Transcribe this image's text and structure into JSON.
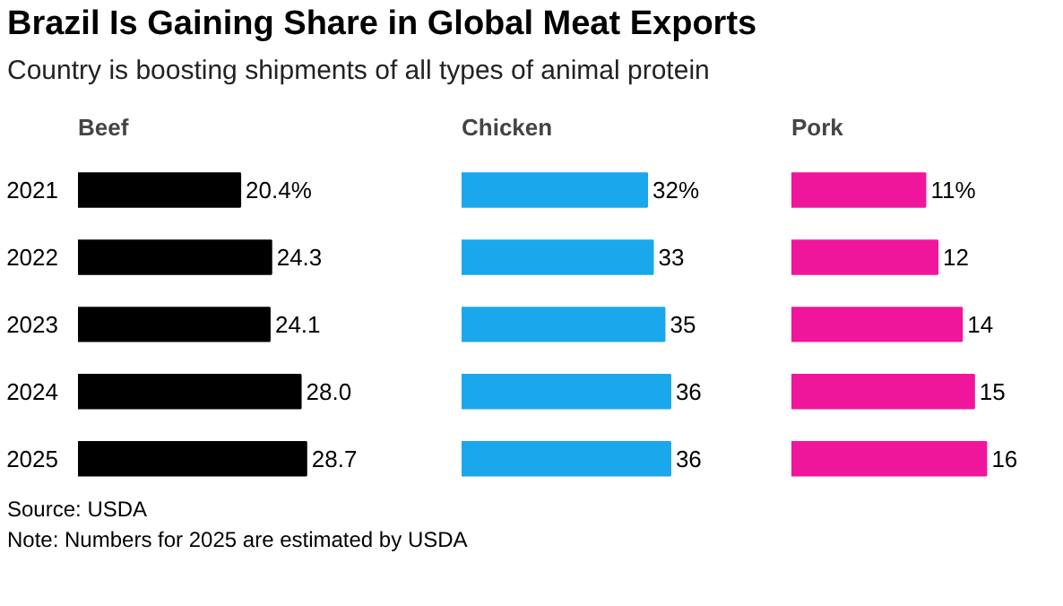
{
  "chart_data": [
    {
      "type": "other",
      "title": "Brazil Is Gaining Share in Global Meat Exports",
      "subtitle": "Country is boosting shipments of all types of animal protein",
      "annotations": [
        "Source: USDA",
        "Note: Numbers for 2025 are estimated by USDA"
      ]
    },
    {
      "type": "bar",
      "orientation": "horizontal",
      "title": "Beef",
      "categories": [
        "2021",
        "2022",
        "2023",
        "2024",
        "2025"
      ],
      "values": [
        20.4,
        24.3,
        24.1,
        28.0,
        28.7
      ],
      "value_labels": [
        "20.4%",
        "24.3",
        "24.1",
        "28.0",
        "28.7"
      ],
      "color": "#000000",
      "tick_labels": "y"
    },
    {
      "type": "bar",
      "orientation": "horizontal",
      "title": "Chicken",
      "categories": [
        "2021",
        "2022",
        "2023",
        "2024",
        "2025"
      ],
      "values": [
        32,
        33,
        35,
        36,
        36
      ],
      "value_labels": [
        "32%",
        "33",
        "35",
        "36",
        "36"
      ],
      "color": "#1aa7ec",
      "tick_labels": false
    },
    {
      "type": "bar",
      "orientation": "horizontal",
      "title": "Pork",
      "categories": [
        "2021",
        "2022",
        "2023",
        "2024",
        "2025"
      ],
      "values": [
        11,
        12,
        14,
        15,
        16
      ],
      "value_labels": [
        "11%",
        "12",
        "14",
        "15",
        "16"
      ],
      "color": "#f0169b",
      "tick_labels": false
    }
  ]
}
